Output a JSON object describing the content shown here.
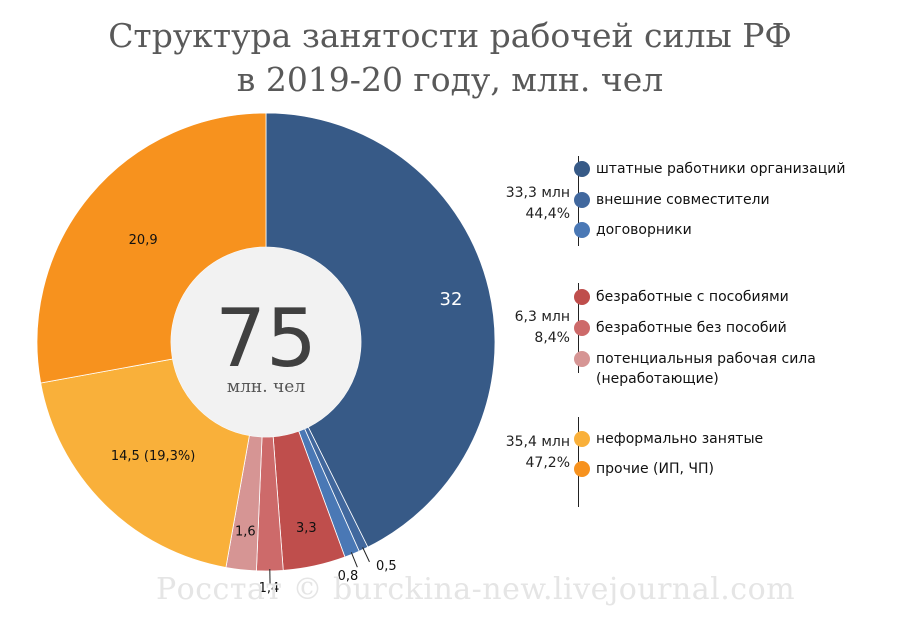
{
  "chart_data": {
    "type": "pie",
    "variant": "donut",
    "title_lines": [
      "Структура занятости рабочей силы РФ",
      "в 2019-20 году, млн. чел"
    ],
    "center_value": "75",
    "center_unit": "млн. чел",
    "slices": [
      {
        "label": "штатные работники организаций",
        "value": 32,
        "value_label": "32",
        "color": "#375a87"
      },
      {
        "label": "внешние совместители",
        "value": 0.5,
        "value_label": "0,5",
        "color": "#41689e"
      },
      {
        "label": "договорники",
        "value": 0.8,
        "value_label": "0,8",
        "color": "#4a78b5"
      },
      {
        "label": "безработные с пособиями",
        "value": 3.3,
        "value_label": "3,3",
        "color": "#bf4e4c"
      },
      {
        "label": "безработные без пособий",
        "value": 1.4,
        "value_label": "1,4",
        "color": "#cd6a6a"
      },
      {
        "label": "потенциальныя рабочая сила (неработающие)",
        "value": 1.6,
        "value_label": "1,6",
        "color": "#d69594"
      },
      {
        "label": "неформально занятые",
        "value": 14.5,
        "value_label": "14,5 (19,3%)",
        "color": "#f9b03a"
      },
      {
        "label": "прочие (ИП, ЧП)",
        "value": 20.9,
        "value_label": "20,9",
        "color": "#f7921e"
      }
    ],
    "groups": [
      {
        "total": "33,3 млн",
        "share": "44,4%",
        "items": [
          {
            "label": "штатные работники организаций",
            "color": "#375a87"
          },
          {
            "label": "внешние совместители",
            "color": "#41689e"
          },
          {
            "label": "договорники",
            "color": "#4a78b5"
          }
        ]
      },
      {
        "total": "6,3 млн",
        "share": "8,4%",
        "items": [
          {
            "label": "безработные с пособиями",
            "color": "#bf4e4c"
          },
          {
            "label": "безработные без пособий",
            "color": "#cd6a6a"
          },
          {
            "label": "потенциальныя рабочая сила",
            "label2": "(неработающие)",
            "color": "#d69594"
          }
        ]
      },
      {
        "total": "35,4 млн",
        "share": "47,2%",
        "items": [
          {
            "label": "неформально занятые",
            "color": "#f9b03a"
          },
          {
            "label": "прочие (ИП, ЧП)",
            "color": "#f7921e"
          }
        ]
      }
    ]
  },
  "watermark": "Росстат © burckina-new.livejournal.com"
}
